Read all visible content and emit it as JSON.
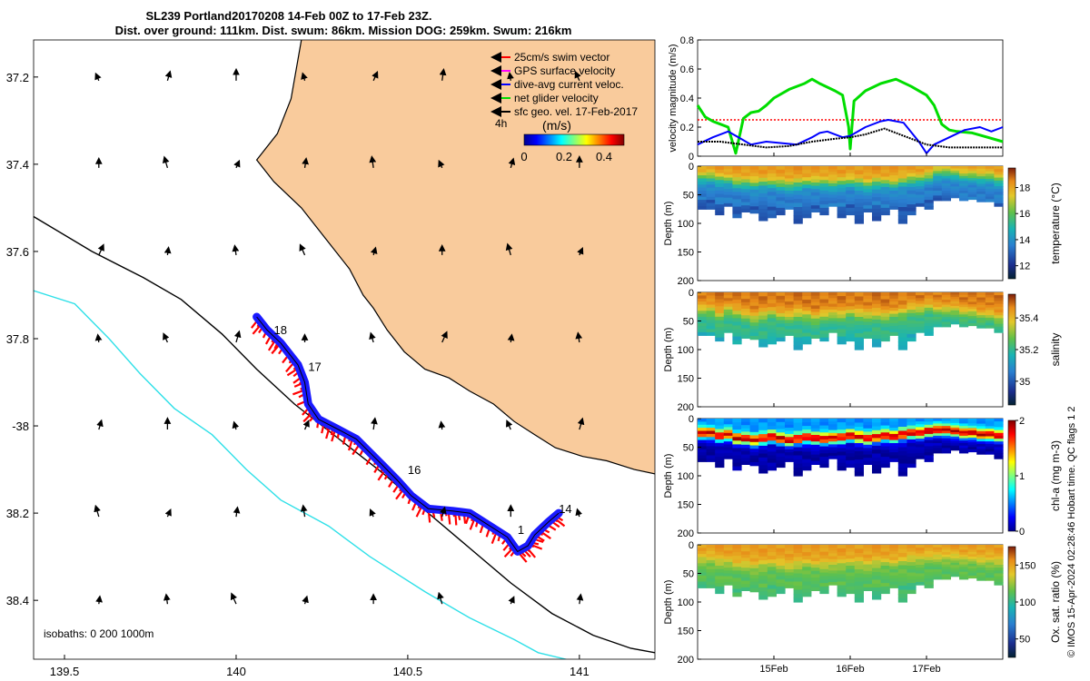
{
  "title": {
    "line1": "SL239 Portland20170208 14-Feb 00Z to 17-Feb 23Z.",
    "line2": "Dist. over ground: 111km. Dist. swum: 86km. Mission DOG: 259km. Swum: 216km"
  },
  "credit": "© IMOS 15-Apr-2024 02:28:46 Hobart time. QC flags 1  2",
  "chart_data": [
    {
      "type": "map",
      "name": "track-map",
      "x_ticks": [
        139.5,
        140,
        140.5,
        141
      ],
      "x_tick_labels": [
        "139.5",
        "140",
        "140.5",
        "141"
      ],
      "y_ticks": [
        -37.2,
        -37.4,
        -37.6,
        -37.8,
        -38,
        -38.2,
        -38.4
      ],
      "y_tick_labels": [
        "37.2",
        "37.4",
        "37.6",
        "37.8",
        "-38",
        "38.2",
        "38.4"
      ],
      "xlim": [
        139.41,
        141.22
      ],
      "ylim": [
        -38.535,
        -37.115
      ],
      "isobath_label": "isobaths: 0   200   1000m",
      "legend": [
        {
          "label": "25cm/s swim vector",
          "color": "#ff0000"
        },
        {
          "label": "GPS surface velocity",
          "color": "#ff00ff"
        },
        {
          "label": "dive-avg current veloc.",
          "color": "#0000ff"
        },
        {
          "label": "net glider velocity",
          "color": "#00dd00"
        },
        {
          "label": "sfc geo. vel. 17-Feb-2017",
          "color": "#000000"
        }
      ],
      "legend_note": "4h",
      "colorbar": {
        "title": "(m/s)",
        "ticks": [
          0,
          0.2,
          0.4
        ],
        "tick_labels": [
          "0",
          "0.2",
          "0.4"
        ],
        "range": [
          0,
          0.5
        ]
      },
      "day_labels": [
        {
          "label": "18",
          "lon": 140.11,
          "lat": -37.79
        },
        {
          "label": "17",
          "lon": 140.21,
          "lat": -37.874
        },
        {
          "label": "16",
          "lon": 140.5,
          "lat": -38.11
        },
        {
          "label": "1",
          "lon": 140.82,
          "lat": -38.248
        },
        {
          "label": "14",
          "lon": 140.94,
          "lat": -38.2
        }
      ],
      "track": [
        [
          140.06,
          -37.75
        ],
        [
          140.09,
          -37.78
        ],
        [
          140.13,
          -37.81
        ],
        [
          140.18,
          -37.86
        ],
        [
          140.2,
          -37.9
        ],
        [
          140.21,
          -37.95
        ],
        [
          140.24,
          -37.985
        ],
        [
          140.29,
          -38.005
        ],
        [
          140.35,
          -38.03
        ],
        [
          140.42,
          -38.085
        ],
        [
          140.47,
          -38.125
        ],
        [
          140.51,
          -38.16
        ],
        [
          140.56,
          -38.19
        ],
        [
          140.63,
          -38.195
        ],
        [
          140.68,
          -38.2
        ],
        [
          140.73,
          -38.225
        ],
        [
          140.79,
          -38.255
        ],
        [
          140.82,
          -38.288
        ],
        [
          140.85,
          -38.275
        ],
        [
          140.87,
          -38.25
        ],
        [
          140.91,
          -38.22
        ],
        [
          140.94,
          -38.2
        ]
      ],
      "coast": [
        [
          140.19,
          -37.115
        ],
        [
          140.16,
          -37.25
        ],
        [
          140.12,
          -37.33
        ],
        [
          140.06,
          -37.39
        ],
        [
          140.11,
          -37.44
        ],
        [
          140.19,
          -37.5
        ],
        [
          140.26,
          -37.57
        ],
        [
          140.33,
          -37.64
        ],
        [
          140.37,
          -37.7
        ],
        [
          140.4,
          -37.73
        ],
        [
          140.44,
          -37.78
        ],
        [
          140.49,
          -37.83
        ],
        [
          140.55,
          -37.87
        ],
        [
          140.62,
          -37.89
        ],
        [
          140.68,
          -37.92
        ],
        [
          140.75,
          -37.95
        ],
        [
          140.81,
          -37.99
        ],
        [
          140.87,
          -38.02
        ],
        [
          140.93,
          -38.05
        ],
        [
          141.01,
          -38.07
        ],
        [
          141.08,
          -38.08
        ],
        [
          141.16,
          -38.1
        ],
        [
          141.22,
          -38.11
        ]
      ],
      "isobath_200": [
        [
          139.41,
          -37.52
        ],
        [
          139.58,
          -37.6
        ],
        [
          139.73,
          -37.66
        ],
        [
          139.84,
          -37.71
        ],
        [
          139.96,
          -37.79
        ],
        [
          140.06,
          -37.87
        ],
        [
          140.17,
          -37.95
        ],
        [
          140.3,
          -38.03
        ],
        [
          140.43,
          -38.11
        ],
        [
          140.56,
          -38.2
        ],
        [
          140.68,
          -38.28
        ],
        [
          140.8,
          -38.36
        ],
        [
          140.92,
          -38.43
        ],
        [
          141.04,
          -38.48
        ],
        [
          141.15,
          -38.51
        ],
        [
          141.22,
          -38.52
        ]
      ],
      "isobath_1000": [
        [
          139.41,
          -37.69
        ],
        [
          139.53,
          -37.72
        ],
        [
          139.63,
          -37.8
        ],
        [
          139.72,
          -37.88
        ],
        [
          139.82,
          -37.96
        ],
        [
          139.93,
          -38.02
        ],
        [
          140.03,
          -38.1
        ],
        [
          140.13,
          -38.17
        ],
        [
          140.27,
          -38.23
        ],
        [
          140.39,
          -38.3
        ],
        [
          140.55,
          -38.38
        ],
        [
          140.68,
          -38.44
        ],
        [
          140.81,
          -38.49
        ],
        [
          140.88,
          -38.52
        ],
        [
          140.96,
          -38.535
        ],
        [
          141.0,
          -38.55
        ]
      ]
    },
    {
      "type": "line",
      "name": "velocity-magnitude",
      "ylabel": "velocity magnitude (m/s)",
      "xlim": [
        14.0,
        18.0
      ],
      "ylim": [
        0,
        0.8
      ],
      "yticks": [
        0,
        0.2,
        0.4,
        0.6,
        0.8
      ],
      "ytick_labels": [
        "0",
        "0.2",
        "0.4",
        "0.6",
        "0.8"
      ],
      "reference_line": {
        "value": 0.25,
        "color": "#ff0000",
        "style": "dotted"
      },
      "series": [
        {
          "name": "net glider velocity",
          "color": "#00dd00",
          "width": 3,
          "x": [
            14.0,
            14.1,
            14.2,
            14.3,
            14.4,
            14.5,
            14.6,
            14.7,
            14.8,
            14.9,
            15.0,
            15.2,
            15.4,
            15.5,
            15.6,
            15.8,
            15.9,
            15.98,
            16.0,
            16.05,
            16.2,
            16.4,
            16.6,
            16.8,
            17.0,
            17.1,
            17.2,
            17.3,
            17.4,
            17.6,
            17.8,
            18.0
          ],
          "values": [
            0.35,
            0.27,
            0.24,
            0.22,
            0.2,
            0.02,
            0.26,
            0.3,
            0.31,
            0.35,
            0.4,
            0.46,
            0.5,
            0.53,
            0.5,
            0.45,
            0.42,
            0.2,
            0.05,
            0.38,
            0.45,
            0.5,
            0.53,
            0.48,
            0.42,
            0.35,
            0.22,
            0.18,
            0.17,
            0.16,
            0.13,
            0.1
          ]
        },
        {
          "name": "dive-avg current veloc.",
          "color": "#0000ff",
          "width": 2,
          "x": [
            14.0,
            14.2,
            14.4,
            14.6,
            14.7,
            14.9,
            15.1,
            15.3,
            15.5,
            15.6,
            15.7,
            15.9,
            16.0,
            16.2,
            16.4,
            16.5,
            16.7,
            16.9,
            17.0,
            17.1,
            17.3,
            17.5,
            17.7,
            17.85,
            18.0
          ],
          "values": [
            0.08,
            0.13,
            0.17,
            0.11,
            0.08,
            0.1,
            0.09,
            0.08,
            0.13,
            0.16,
            0.17,
            0.13,
            0.14,
            0.2,
            0.24,
            0.25,
            0.23,
            0.1,
            0.02,
            0.08,
            0.13,
            0.18,
            0.2,
            0.17,
            0.2
          ]
        },
        {
          "name": "sfc geo. vel.",
          "color": "#000000",
          "width": 2,
          "dotted": true,
          "x": [
            14.0,
            14.3,
            14.6,
            14.9,
            15.2,
            15.5,
            15.8,
            16.0,
            16.2,
            16.45,
            16.6,
            16.8,
            17.0,
            17.3,
            17.6,
            18.0
          ],
          "values": [
            0.1,
            0.1,
            0.08,
            0.06,
            0.07,
            0.1,
            0.12,
            0.13,
            0.15,
            0.19,
            0.16,
            0.12,
            0.08,
            0.06,
            0.06,
            0.06
          ]
        }
      ]
    },
    {
      "type": "heatmap",
      "name": "temperature",
      "ylabel": "Depth (m)",
      "colorbar_label": "temperature (°C)",
      "ylim": [
        0,
        200
      ],
      "yticks": [
        0,
        50,
        100,
        150,
        200
      ],
      "ytick_labels": [
        "0",
        "50",
        "100",
        "150",
        "200"
      ],
      "cticks": [
        12,
        14,
        16,
        18
      ],
      "ctick_labels": [
        "12",
        "14",
        "16",
        "18"
      ],
      "crange": [
        11,
        19.5
      ],
      "upper_value": 18.3,
      "lower_value": 13.5,
      "deep_value": 12.2,
      "max_depth": [
        75,
        75,
        85,
        70,
        90,
        80,
        82,
        95,
        90,
        85,
        75,
        100,
        90,
        80,
        85,
        70,
        90,
        85,
        100,
        80,
        95,
        85,
        75,
        100,
        85,
        70,
        75,
        60,
        60,
        55,
        60,
        58,
        62,
        62,
        70
      ],
      "layer_depth": [
        20,
        20,
        24,
        25,
        30,
        30,
        32,
        30,
        30,
        32,
        34,
        32,
        30,
        30,
        30,
        32,
        30,
        28,
        30,
        34,
        30,
        30,
        32,
        28,
        25,
        24,
        20,
        12,
        12,
        14,
        18,
        18,
        20,
        20,
        25
      ]
    },
    {
      "type": "heatmap",
      "name": "salinity",
      "ylabel": "Depth (m)",
      "colorbar_label": "salinity",
      "ylim": [
        0,
        200
      ],
      "yticks": [
        0,
        50,
        100,
        150,
        200
      ],
      "ytick_labels": [
        "0",
        "50",
        "100",
        "150",
        "200"
      ],
      "cticks": [
        35,
        35.2,
        35.4
      ],
      "ctick_labels": [
        "35",
        "35.2",
        "35.4"
      ],
      "crange": [
        34.85,
        35.55
      ],
      "upper_value": 35.48,
      "lower_value": 35.2,
      "deep_value": 35.1,
      "max_depth": [
        75,
        75,
        85,
        70,
        90,
        80,
        82,
        95,
        90,
        85,
        75,
        100,
        90,
        80,
        85,
        70,
        90,
        85,
        100,
        80,
        95,
        85,
        75,
        100,
        85,
        70,
        75,
        60,
        60,
        55,
        60,
        58,
        62,
        62,
        70
      ],
      "layer_depth": [
        30,
        30,
        40,
        30,
        35,
        40,
        45,
        40,
        35,
        40,
        42,
        38,
        40,
        45,
        40,
        38,
        40,
        35,
        38,
        40,
        40,
        42,
        38,
        35,
        30,
        30,
        25,
        30,
        30,
        30,
        35,
        35,
        40,
        40,
        45
      ]
    },
    {
      "type": "heatmap",
      "name": "chl-a",
      "ylabel": "Depth (m)",
      "colorbar_label": "chl-a (mg m-3)",
      "ylim": [
        0,
        200
      ],
      "yticks": [
        0,
        50,
        100,
        150,
        200
      ],
      "ytick_labels": [
        "0",
        "50",
        "100",
        "150",
        "200"
      ],
      "cticks": [
        0,
        1,
        2
      ],
      "ctick_labels": [
        "0",
        "1",
        "2"
      ],
      "crange": [
        0,
        2
      ],
      "upper_value": 0.9,
      "lower_value": 0.1,
      "deep_value": 0.05,
      "peak_value": 1.9,
      "max_depth": [
        75,
        75,
        85,
        70,
        90,
        80,
        82,
        95,
        90,
        85,
        75,
        100,
        90,
        80,
        85,
        70,
        90,
        85,
        100,
        80,
        95,
        85,
        75,
        100,
        85,
        70,
        75,
        60,
        60,
        55,
        60,
        58,
        62,
        62,
        70
      ],
      "layer_depth": [
        25,
        25,
        30,
        28,
        35,
        35,
        38,
        35,
        32,
        35,
        38,
        35,
        33,
        35,
        35,
        34,
        33,
        30,
        32,
        35,
        32,
        30,
        32,
        28,
        25,
        25,
        22,
        20,
        20,
        22,
        25,
        25,
        28,
        28,
        30
      ]
    },
    {
      "type": "heatmap",
      "name": "oxygen-saturation",
      "ylabel": "Depth (m)",
      "colorbar_label": "Ox. sat. ratio (%)",
      "ylim": [
        0,
        200
      ],
      "yticks": [
        0,
        50,
        100,
        150,
        200
      ],
      "ytick_labels": [
        "0",
        "50",
        "100",
        "150",
        "200"
      ],
      "cticks": [
        50,
        100,
        150
      ],
      "ctick_labels": [
        "50",
        "100",
        "150"
      ],
      "crange": [
        25,
        175
      ],
      "upper_value": 152,
      "lower_value": 112,
      "deep_value": 100,
      "xticks": [
        15,
        16,
        17
      ],
      "xtick_labels": [
        "15Feb",
        "16Feb",
        "17Feb"
      ],
      "xlim": [
        14.0,
        18.0
      ],
      "max_depth": [
        75,
        75,
        85,
        70,
        90,
        80,
        82,
        95,
        90,
        85,
        75,
        100,
        90,
        80,
        85,
        70,
        90,
        85,
        100,
        80,
        95,
        85,
        75,
        100,
        85,
        70,
        75,
        60,
        60,
        55,
        60,
        58,
        62,
        62,
        70
      ],
      "layer_depth": [
        25,
        25,
        30,
        30,
        35,
        35,
        38,
        35,
        32,
        35,
        38,
        35,
        33,
        35,
        35,
        34,
        33,
        30,
        32,
        35,
        32,
        30,
        32,
        28,
        25,
        25,
        22,
        22,
        22,
        22,
        25,
        25,
        28,
        28,
        30
      ]
    }
  ]
}
